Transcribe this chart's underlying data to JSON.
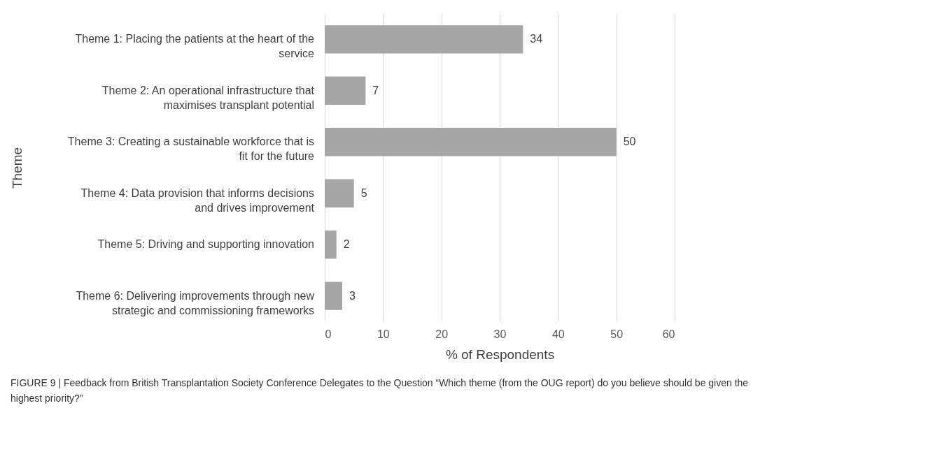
{
  "chart_data": {
    "type": "bar",
    "orientation": "horizontal",
    "categories": [
      "Theme 1: Placing the patients at the heart of the service",
      "Theme 2: An operational infrastructure that maximises transplant potential",
      "Theme 3: Creating a sustainable workforce that is fit for the future",
      "Theme 4: Data provision that informs decisions and drives improvement",
      "Theme 5: Driving and supporting innovation",
      "Theme 6: Delivering improvements through new strategic and commissioning frameworks"
    ],
    "values": [
      34,
      7,
      50,
      5,
      2,
      3
    ],
    "color": "#a6a6a6",
    "xlim": [
      0,
      60
    ],
    "xticks": [
      0,
      10,
      20,
      30,
      40,
      50,
      60
    ],
    "grid": "x",
    "xlabel": "% of Respondents",
    "ylabel": "Theme",
    "data_labels": true,
    "annotations": [
      "FIGURE 9 | Feedback from British Transplantation Society Conference Delegates to the Question “Which theme (from the OUG report) do you believe should be given the highest priority?”"
    ]
  }
}
